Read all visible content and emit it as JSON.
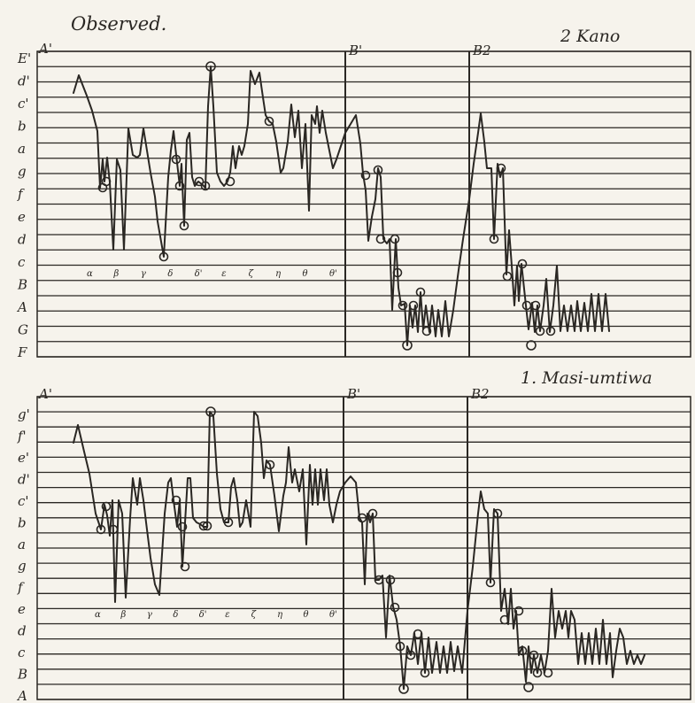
{
  "heading": "Observed.",
  "panels": [
    {
      "id": "kano",
      "caption": "2 Kano",
      "sections": [
        "A'",
        "B'",
        "B2"
      ],
      "pitch_labels": [
        "E'",
        "d'",
        "c'",
        "b",
        "a",
        "g",
        "f",
        "e",
        "d",
        "c",
        "B",
        "A",
        "G",
        "F"
      ],
      "motif_letters": [
        "α",
        "β",
        "γ",
        "δ",
        "δ'",
        "ε",
        "ζ",
        "η",
        "θ",
        "θ'"
      ]
    },
    {
      "id": "masi-umtiwa",
      "caption": "1. Masi-umtiwa",
      "sections": [
        "A'",
        "B'",
        "B2"
      ],
      "pitch_labels": [
        "g'",
        "f'",
        "e'",
        "d'",
        "c'",
        "b",
        "a",
        "g",
        "f",
        "e",
        "d",
        "c",
        "B",
        "A"
      ],
      "motif_letters": [
        "α",
        "β",
        "γ",
        "δ",
        "δ'",
        "ε",
        "ζ",
        "η",
        "θ",
        "θ'"
      ]
    }
  ]
}
